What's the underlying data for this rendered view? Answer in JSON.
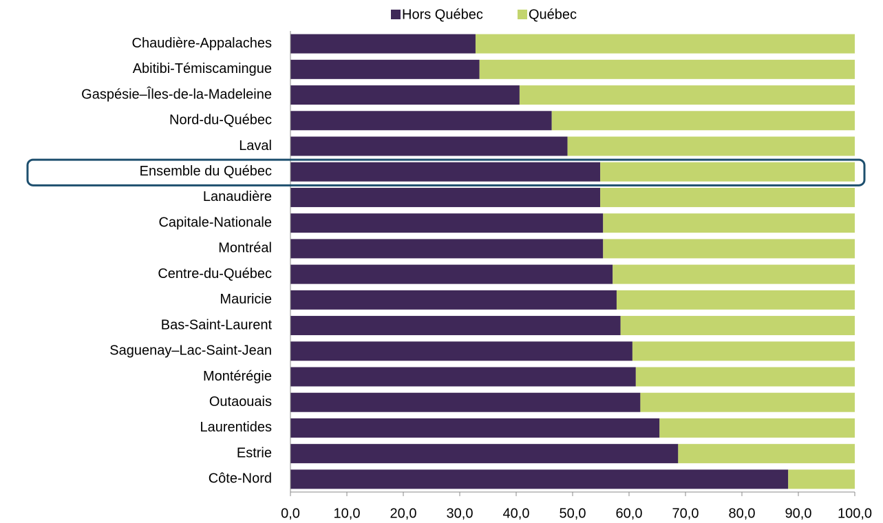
{
  "chart_data": {
    "type": "stacked_barh",
    "categories": [
      "Chaudière-Appalaches",
      "Abitibi-Témiscamingue",
      "Gaspésie–Îles-de-la-Madeleine",
      "Nord-du-Québec",
      "Laval",
      "Ensemble du Québec",
      "Lanaudière",
      "Capitale-Nationale",
      "Montréal",
      "Centre-du-Québec",
      "Mauricie",
      "Bas-Saint-Laurent",
      "Saguenay–Lac-Saint-Jean",
      "Montérégie",
      "Outaouais",
      "Laurentides",
      "Estrie",
      "Côte-Nord"
    ],
    "series": [
      {
        "name": "Hors Québec",
        "color": "#3f2858",
        "values": [
          32.8,
          33.5,
          40.6,
          46.3,
          49.1,
          54.9,
          54.9,
          55.4,
          55.4,
          57.1,
          57.8,
          58.5,
          60.6,
          61.2,
          62.0,
          65.4,
          68.7,
          88.2
        ]
      },
      {
        "name": "Québec",
        "color": "#c3d56e",
        "values": [
          67.2,
          66.5,
          59.4,
          53.7,
          50.9,
          45.1,
          45.1,
          44.6,
          44.6,
          42.9,
          42.2,
          41.5,
          39.4,
          38.8,
          38.0,
          34.6,
          31.3,
          11.8
        ]
      }
    ],
    "xlim": [
      0,
      100
    ],
    "xticks": [
      {
        "value": 0,
        "label": "0,0"
      },
      {
        "value": 10,
        "label": "10,0"
      },
      {
        "value": 20,
        "label": "20,0"
      },
      {
        "value": 30,
        "label": "30,0"
      },
      {
        "value": 40,
        "label": "40,0"
      },
      {
        "value": 50,
        "label": "50,0"
      },
      {
        "value": 60,
        "label": "60,0"
      },
      {
        "value": 70,
        "label": "70,0"
      },
      {
        "value": 80,
        "label": "80,0"
      },
      {
        "value": 90,
        "label": "90,0"
      },
      {
        "value": 100,
        "label": "100,0"
      }
    ],
    "legend": "top"
  }
}
